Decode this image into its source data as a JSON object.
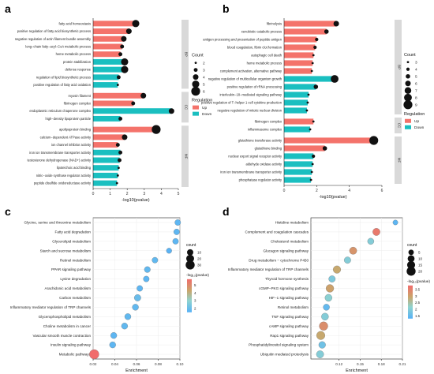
{
  "figure": {
    "legend": {
      "count_title": "Count",
      "regulation_title": "Regulation",
      "neglog_title": "-log₁₀(pvalue)"
    }
  },
  "chart_data": [
    {
      "panel": "a",
      "type": "bar",
      "xlabel": "-log10(pvalue)",
      "xlim": [
        0,
        5
      ],
      "xticks": [
        0,
        1,
        2,
        3,
        4,
        5
      ],
      "groups": [
        "BP",
        "CC",
        "MF"
      ],
      "count_legend": [
        2,
        3,
        4,
        5,
        6
      ],
      "regulation_legend": [
        "Up",
        "Down"
      ],
      "colors": {
        "Up": "#f4736b",
        "Down": "#1abfc0",
        "strip": "#d9d9d9"
      },
      "bars": [
        {
          "label": "fatty acid homeostasis",
          "value": 2.5,
          "group": "BP",
          "reg": "Up",
          "count": 5
        },
        {
          "label": "positive regulation of fatty acid biosynthetic process",
          "value": 2.1,
          "group": "BP",
          "reg": "Up",
          "count": 4
        },
        {
          "label": "negative regulation of actin filament bundle assembly",
          "value": 1.8,
          "group": "BP",
          "reg": "Up",
          "count": 4
        },
        {
          "label": "long−chain fatty−acyl−CoA metabolic process",
          "value": 1.7,
          "group": "BP",
          "reg": "Up",
          "count": 3
        },
        {
          "label": "heme metabolic process",
          "value": 1.6,
          "group": "BP",
          "reg": "Up",
          "count": 3
        },
        {
          "label": "protein stabilization",
          "value": 1.85,
          "group": "BP",
          "reg": "Down",
          "count": 5
        },
        {
          "label": "defense response",
          "value": 1.85,
          "group": "BP",
          "reg": "Down",
          "count": 5
        },
        {
          "label": "regulation of lipid biosynthetic process",
          "value": 1.5,
          "group": "BP",
          "reg": "Down",
          "count": 3
        },
        {
          "label": "positive regulation of fatty acid oxidation",
          "value": 1.45,
          "group": "BP",
          "reg": "Down",
          "count": 2
        },
        {
          "label": "myosin filament",
          "value": 2.95,
          "group": "CC",
          "reg": "Up",
          "count": 4
        },
        {
          "label": "fibrinogen complex",
          "value": 2.35,
          "group": "CC",
          "reg": "Up",
          "count": 3
        },
        {
          "label": "endoplasmic reticulum chaperone complex",
          "value": 4.6,
          "group": "CC",
          "reg": "Down",
          "count": 4
        },
        {
          "label": "high−density lipoprotein particle",
          "value": 1.6,
          "group": "CC",
          "reg": "Down",
          "count": 3
        },
        {
          "label": "apolipoprotein binding",
          "value": 3.7,
          "group": "MF",
          "reg": "Up",
          "count": 6
        },
        {
          "label": "calcium−dependent ATPase activity",
          "value": 1.85,
          "group": "MF",
          "reg": "Up",
          "count": 4
        },
        {
          "label": "ion channel inhibitor activity",
          "value": 1.45,
          "group": "MF",
          "reg": "Up",
          "count": 3
        },
        {
          "label": "iron ion transmembrane transporter activity",
          "value": 1.6,
          "group": "MF",
          "reg": "Down",
          "count": 3
        },
        {
          "label": "testosterone dehydrogenase (NAD+) activity",
          "value": 1.55,
          "group": "MF",
          "reg": "Down",
          "count": 3
        },
        {
          "label": "lipoteichoic acid binding",
          "value": 1.5,
          "group": "MF",
          "reg": "Down",
          "count": 2
        },
        {
          "label": "nitric−oxide synthase regulator activity",
          "value": 1.45,
          "group": "MF",
          "reg": "Down",
          "count": 2
        },
        {
          "label": "peptide disulfide oxidoreductase activity",
          "value": 1.4,
          "group": "MF",
          "reg": "Down",
          "count": 2
        }
      ]
    },
    {
      "panel": "b",
      "type": "bar",
      "xlabel": "-log10(pvalue)",
      "xlim": [
        0,
        6
      ],
      "xticks": [
        0,
        2,
        4,
        6
      ],
      "groups": [
        "BP",
        "CC",
        "MF"
      ],
      "count_legend": [
        3,
        4,
        5,
        6,
        7,
        8,
        9
      ],
      "regulation_legend": [
        "Up",
        "Down"
      ],
      "colors": {
        "Up": "#f4736b",
        "Down": "#1abfc0",
        "strip": "#d9d9d9"
      },
      "bars": [
        {
          "label": "fibrinolysis",
          "value": 3.2,
          "group": "BP",
          "reg": "Up",
          "count": 6
        },
        {
          "label": "xenobiotic catabolic process",
          "value": 2.6,
          "group": "BP",
          "reg": "Up",
          "count": 5
        },
        {
          "label": "antigen processing and presentation of peptide antigen",
          "value": 2.0,
          "group": "BP",
          "reg": "Up",
          "count": 4
        },
        {
          "label": "blood coagulation, fibrin clot formation",
          "value": 1.9,
          "group": "BP",
          "reg": "Up",
          "count": 4
        },
        {
          "label": "autophagic cell death",
          "value": 1.8,
          "group": "BP",
          "reg": "Up",
          "count": 3
        },
        {
          "label": "heme metabolic process",
          "value": 1.75,
          "group": "BP",
          "reg": "Up",
          "count": 3
        },
        {
          "label": "complement activation, alternative pathway",
          "value": 1.7,
          "group": "BP",
          "reg": "Up",
          "count": 3
        },
        {
          "label": "negative regulation of multicellular organism growth",
          "value": 3.1,
          "group": "BP",
          "reg": "Down",
          "count": 8
        },
        {
          "label": "positive regulation of rRNA processing",
          "value": 1.95,
          "group": "BP",
          "reg": "Down",
          "count": 5
        },
        {
          "label": "interleukin−18−mediated signaling pathway",
          "value": 1.5,
          "group": "BP",
          "reg": "Down",
          "count": 3
        },
        {
          "label": "positive regulation of T−helper 1 cell cytokine production",
          "value": 1.45,
          "group": "BP",
          "reg": "Down",
          "count": 3
        },
        {
          "label": "negative regulation of mitotic nuclear division",
          "value": 1.4,
          "group": "BP",
          "reg": "Down",
          "count": 3
        },
        {
          "label": "fibrinogen complex",
          "value": 1.8,
          "group": "CC",
          "reg": "Up",
          "count": 3
        },
        {
          "label": "inflammasome complex",
          "value": 1.6,
          "group": "CC",
          "reg": "Down",
          "count": 3
        },
        {
          "label": "glutathione transferase activity",
          "value": 5.5,
          "group": "MF",
          "reg": "Up",
          "count": 9
        },
        {
          "label": "glutathione binding",
          "value": 2.5,
          "group": "MF",
          "reg": "Up",
          "count": 5
        },
        {
          "label": "nuclear export signal receptor activity",
          "value": 1.8,
          "group": "MF",
          "reg": "Down",
          "count": 4
        },
        {
          "label": "aldehyde oxidase activity",
          "value": 1.75,
          "group": "MF",
          "reg": "Down",
          "count": 3
        },
        {
          "label": "iron ion transmembrane transporter activity",
          "value": 1.7,
          "group": "MF",
          "reg": "Down",
          "count": 3
        },
        {
          "label": "phosphatase regulator activity",
          "value": 1.65,
          "group": "MF",
          "reg": "Down",
          "count": 3
        }
      ]
    },
    {
      "panel": "c",
      "type": "scatter",
      "xlabel": "Enrichment",
      "xlim": [
        0.02,
        0.1
      ],
      "xticks": [
        0.02,
        0.04,
        0.06,
        0.08,
        0.1
      ],
      "count_legend": [
        10,
        20,
        30
      ],
      "color_legend": [
        2,
        3,
        4,
        5
      ],
      "color_range": [
        1.5,
        5.8
      ],
      "points": [
        {
          "label": "Glycine, serine and threonine metabolism",
          "x": 0.098,
          "count": 8,
          "p": 1.7
        },
        {
          "label": "Fatty acid degradation",
          "x": 0.097,
          "count": 8,
          "p": 1.7
        },
        {
          "label": "Glycerolipid metabolism",
          "x": 0.096,
          "count": 8,
          "p": 1.7
        },
        {
          "label": "Starch and sucrose metabolism",
          "x": 0.09,
          "count": 6,
          "p": 1.6
        },
        {
          "label": "Retinol metabolism",
          "x": 0.077,
          "count": 8,
          "p": 1.8
        },
        {
          "label": "PPAR signaling pathway",
          "x": 0.07,
          "count": 9,
          "p": 1.8
        },
        {
          "label": "Lysine degradation",
          "x": 0.069,
          "count": 8,
          "p": 1.7
        },
        {
          "label": "Arachidonic acid metabolism",
          "x": 0.063,
          "count": 8,
          "p": 1.7
        },
        {
          "label": "Carbon metabolism",
          "x": 0.061,
          "count": 12,
          "p": 2.0
        },
        {
          "label": "Inflammatory mediator regulation of TRP channels",
          "x": 0.059,
          "count": 10,
          "p": 1.8
        },
        {
          "label": "Glycerophospholipid metabolism",
          "x": 0.052,
          "count": 10,
          "p": 1.8
        },
        {
          "label": "Choline metabolism in cancer",
          "x": 0.049,
          "count": 10,
          "p": 1.8
        },
        {
          "label": "Vascular smooth muscle contraction",
          "x": 0.039,
          "count": 10,
          "p": 1.7
        },
        {
          "label": "Insulin signaling pathway",
          "x": 0.038,
          "count": 10,
          "p": 1.7
        },
        {
          "label": "Metabolic pathways",
          "x": 0.021,
          "count": 35,
          "p": 5.8
        }
      ]
    },
    {
      "panel": "d",
      "type": "scatter",
      "xlabel": "Enrichment",
      "xlim": [
        0.08,
        0.21
      ],
      "xticks": [
        0.12,
        0.15,
        0.18,
        0.21
      ],
      "count_legend": [
        5,
        10,
        15,
        20
      ],
      "color_legend": [
        1.5,
        2.0,
        2.5,
        3.0,
        3.5
      ],
      "color_range": [
        1.3,
        3.8
      ],
      "points": [
        {
          "label": "Histidine metabolism",
          "x": 0.2,
          "count": 4,
          "p": 1.4
        },
        {
          "label": "Complement and coagulation cascades",
          "x": 0.173,
          "count": 12,
          "p": 3.6
        },
        {
          "label": "Cholesterol metabolism",
          "x": 0.165,
          "count": 8,
          "p": 2.0
        },
        {
          "label": "Glucagon signaling pathway",
          "x": 0.14,
          "count": 12,
          "p": 3.2
        },
        {
          "label": "Drug metabolism − cytochrome P450",
          "x": 0.132,
          "count": 9,
          "p": 2.0
        },
        {
          "label": "Inflammatory mediator regulation of TRP channels",
          "x": 0.117,
          "count": 13,
          "p": 2.9
        },
        {
          "label": "Thyroid hormone synthesis",
          "x": 0.11,
          "count": 9,
          "p": 1.9
        },
        {
          "label": "cGMP−PKG signaling pathway",
          "x": 0.107,
          "count": 14,
          "p": 3.0
        },
        {
          "label": "HIF−1 signaling pathway",
          "x": 0.105,
          "count": 11,
          "p": 2.1
        },
        {
          "label": "Retinol metabolism",
          "x": 0.102,
          "count": 8,
          "p": 1.5
        },
        {
          "label": "TNF signaling pathway",
          "x": 0.1,
          "count": 11,
          "p": 2.0
        },
        {
          "label": "cAMP signaling pathway",
          "x": 0.098,
          "count": 18,
          "p": 3.3
        },
        {
          "label": "Rap1 signaling pathway",
          "x": 0.094,
          "count": 17,
          "p": 2.9
        },
        {
          "label": "Phosphatidylinositol signaling system",
          "x": 0.096,
          "count": 10,
          "p": 1.7
        },
        {
          "label": "Ubiquitin mediated proteolysis",
          "x": 0.093,
          "count": 12,
          "p": 2.0
        }
      ]
    }
  ]
}
